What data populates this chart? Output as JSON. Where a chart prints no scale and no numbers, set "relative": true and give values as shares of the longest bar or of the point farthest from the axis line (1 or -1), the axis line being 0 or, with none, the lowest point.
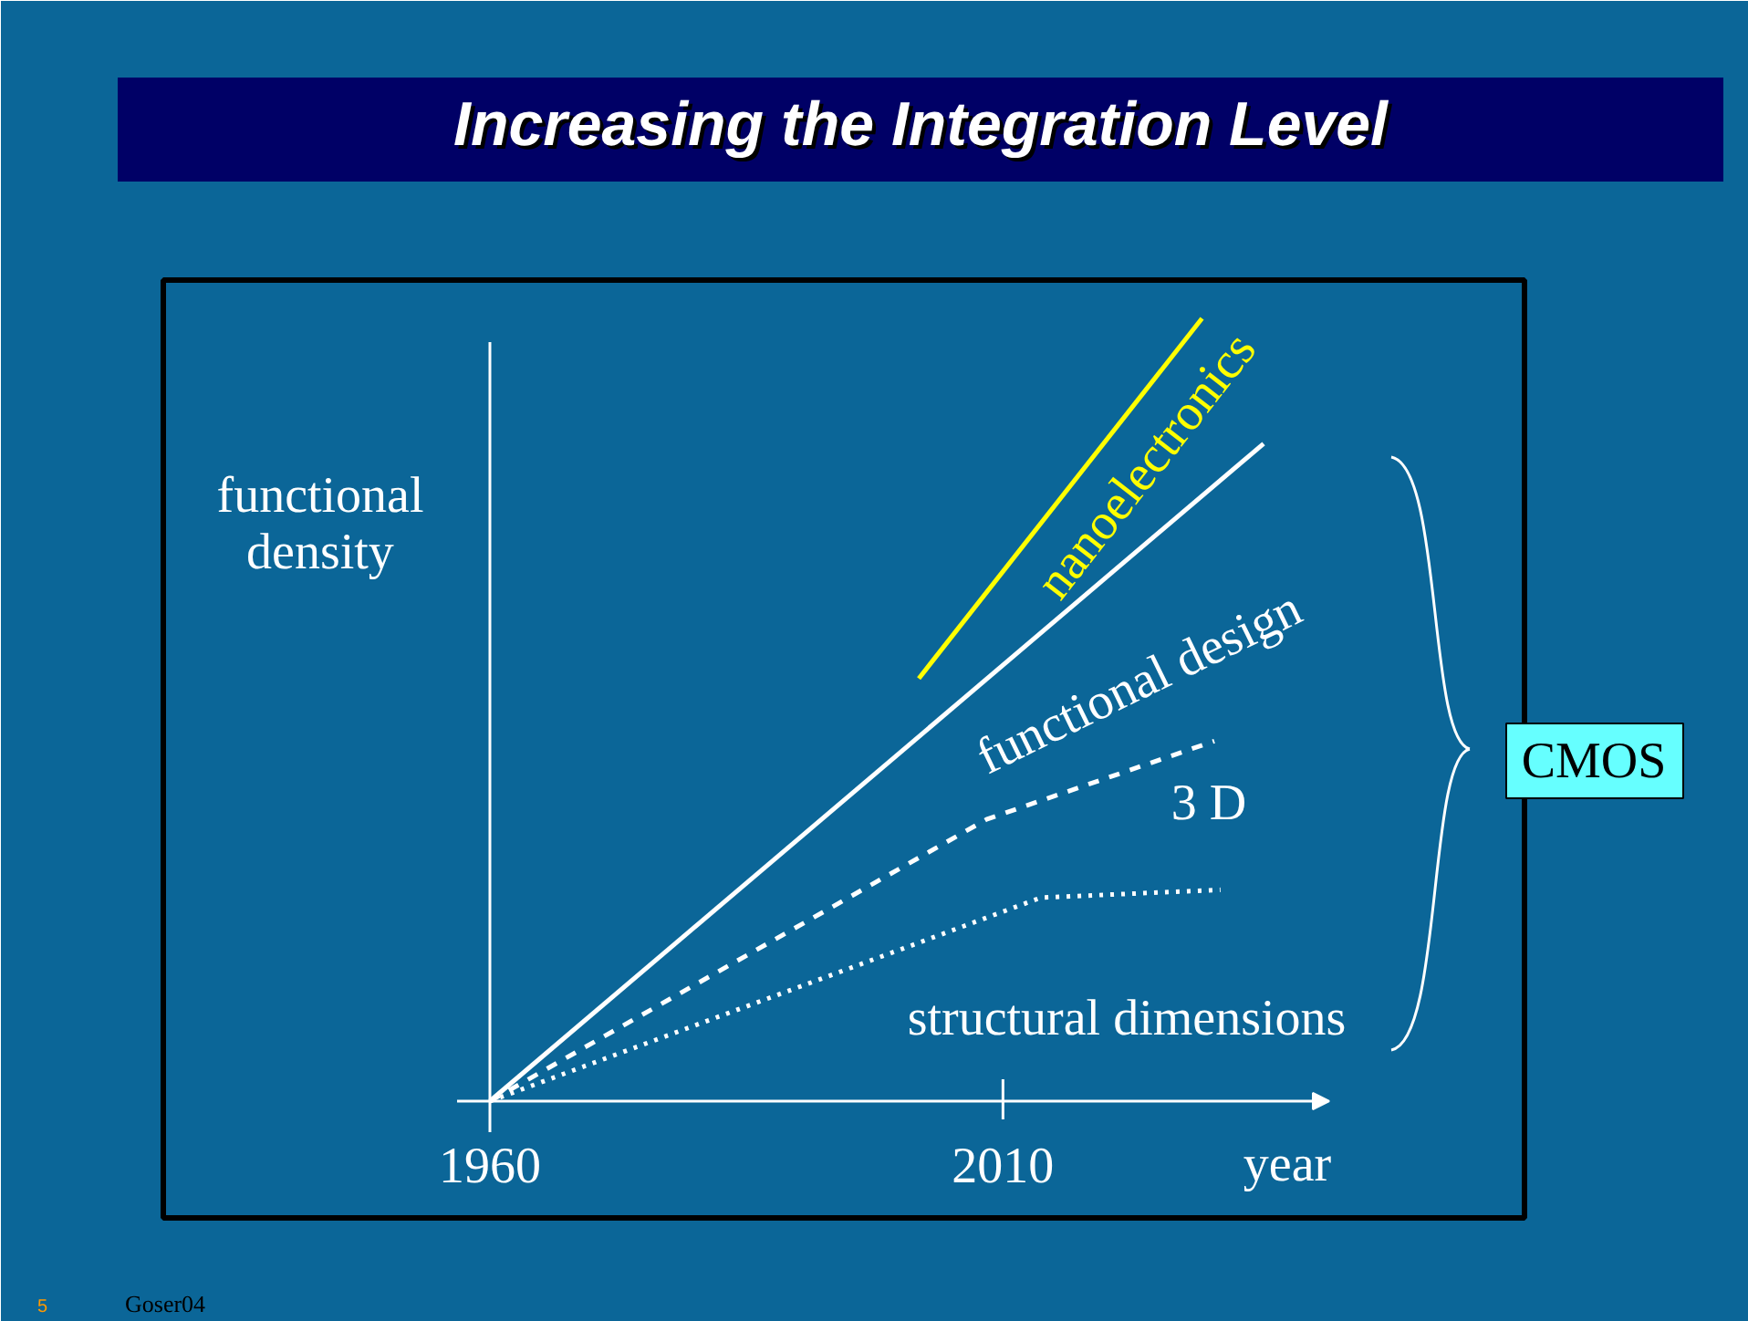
{
  "chart_data": {
    "type": "line",
    "title": "Increasing the Integration Level",
    "xlabel": "year",
    "ylabel": "functional density",
    "relative": true,
    "xlim": [
      1956.8,
      2041.8
    ],
    "xticks": [
      1960,
      2010
    ],
    "series": [
      {
        "name": "nanoelectronics",
        "color": "#ffff00",
        "line_style": "solid",
        "x": [
          2001.8,
          2029.4
        ],
        "values": [
          0.54,
          1
        ]
      },
      {
        "name": "functional design",
        "color": "#ffffff",
        "line_style": "solid",
        "x": [
          1960,
          2035.4
        ],
        "values": [
          0,
          0.84
        ]
      },
      {
        "name": "3 D",
        "color": "#ffffff",
        "line_style": "dashed",
        "x": [
          1960,
          2008.4,
          2030.6
        ],
        "values": [
          0,
          0.36,
          0.46
        ]
      },
      {
        "name": "structural dimensions",
        "color": "#ffffff",
        "line_style": "dotted",
        "x": [
          1960,
          2013.7,
          2031.2
        ],
        "values": [
          0,
          0.26,
          0.27
        ]
      }
    ],
    "annotations": [
      "CMOS",
      "Goser04",
      "5"
    ]
  }
}
